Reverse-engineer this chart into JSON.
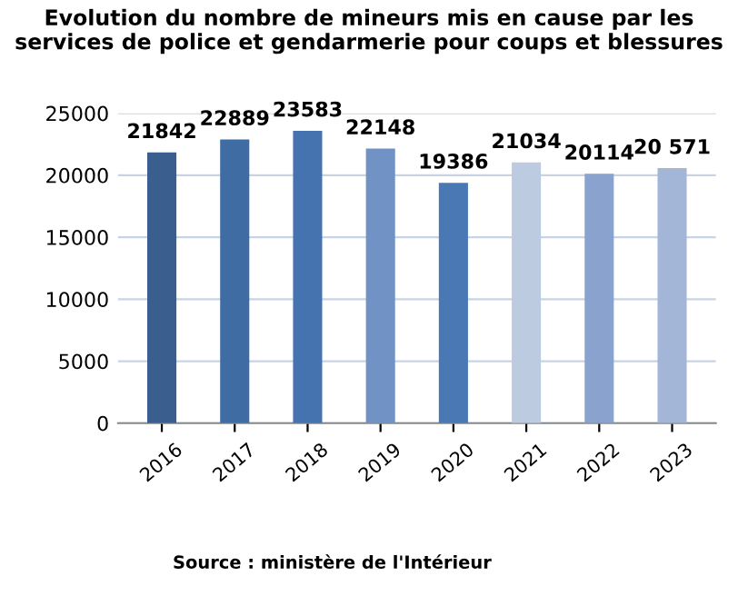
{
  "chart_data": {
    "type": "bar",
    "title": "Evolution du nombre de mineurs mis en cause par les services de police et gendarmerie pour coups et blessures",
    "categories": [
      "2016",
      "2017",
      "2018",
      "2019",
      "2020",
      "2021",
      "2022",
      "2023"
    ],
    "values": [
      21842,
      22889,
      23583,
      22148,
      19386,
      21034,
      20114,
      20571
    ],
    "value_labels": [
      "21842",
      "22889",
      "23583",
      "22148",
      "19386",
      "21034",
      "20114",
      "20 571"
    ],
    "colors": [
      "#3a5f8f",
      "#3f6ca3",
      "#4573b0",
      "#7092c4",
      "#4a78b4",
      "#bccbe0",
      "#89a3ce",
      "#a3b6d8"
    ],
    "ylim": [
      0,
      25000
    ],
    "yticks": [
      0,
      5000,
      10000,
      15000,
      20000,
      25000
    ],
    "grid": "y",
    "annotations": [
      "Source : ministère de l'Intérieur"
    ]
  }
}
